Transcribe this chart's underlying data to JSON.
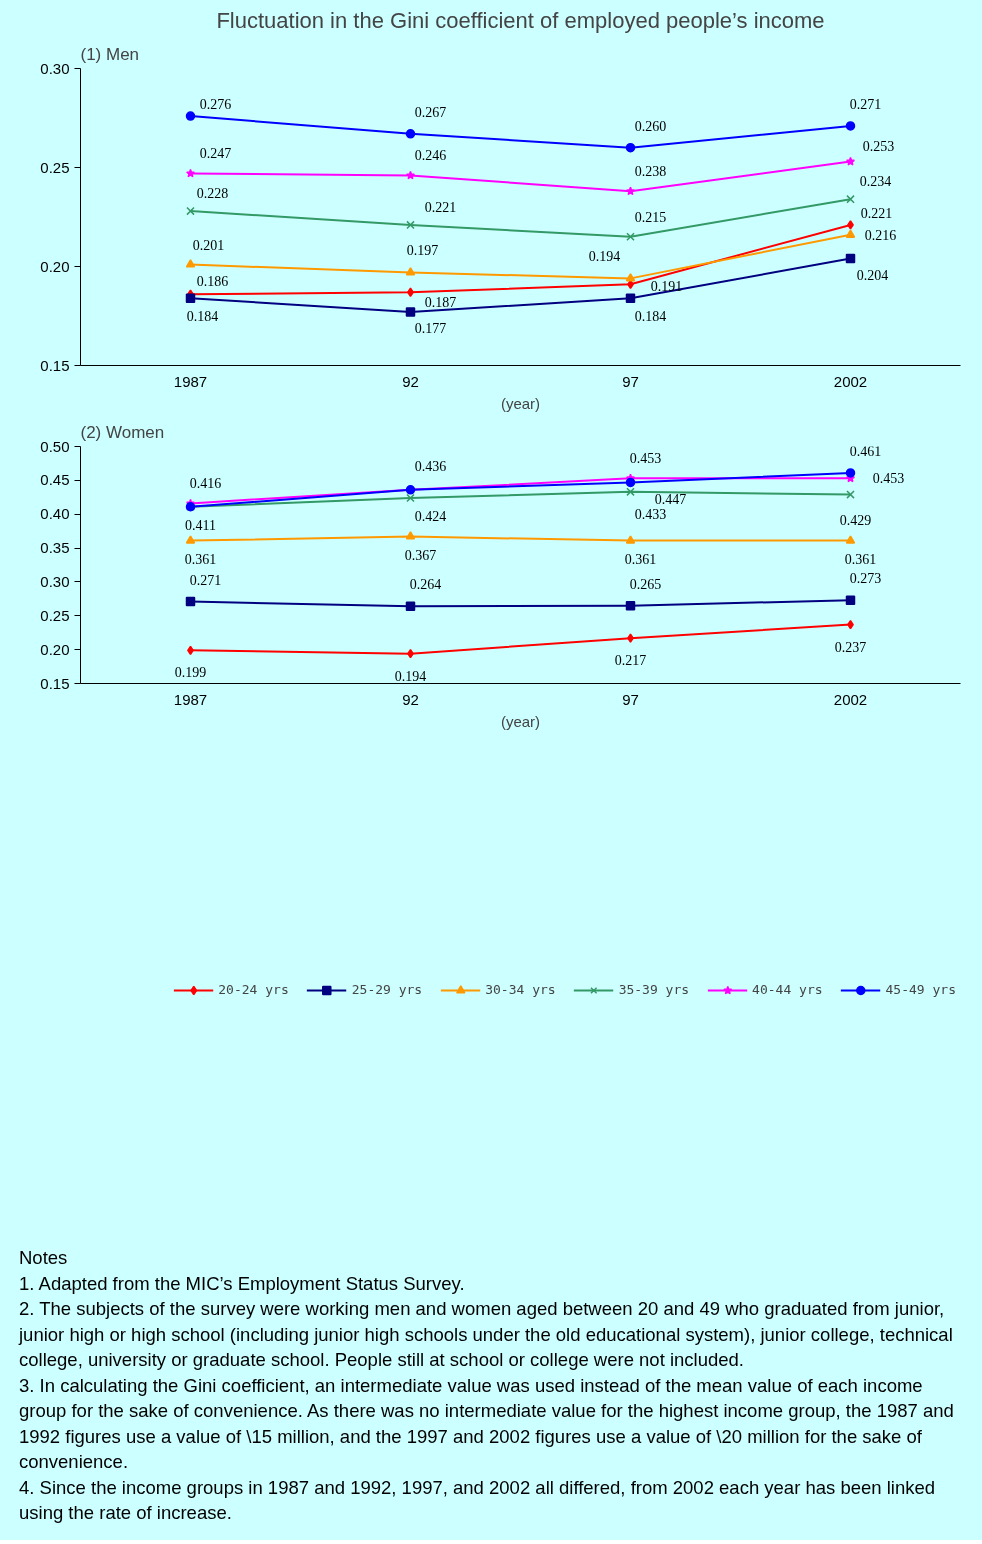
{
  "chart_data": [
    {
      "type": "line",
      "title": "Fluctuation in the Gini coefficient of employed people’s income",
      "subtitle": "(1) Men",
      "xlabel": "(year)",
      "categories": [
        "1987",
        "92",
        "97",
        "2002"
      ],
      "ylim": [
        0.15,
        0.3
      ],
      "yticks": [
        "0.15",
        "0.20",
        "0.25",
        "0.30"
      ],
      "grid": false,
      "legend": false,
      "series": [
        {
          "color": "#ff0000",
          "marker": "diamond",
          "values": [
            0.186,
            0.187,
            0.191,
            0.221
          ],
          "value_labels": [
            "0.186",
            "0.187",
            "0.191",
            "0.221"
          ]
        },
        {
          "color": "#000080",
          "marker": "square",
          "values": [
            0.184,
            0.177,
            0.184,
            0.204
          ],
          "value_labels": [
            "0.184",
            "0.177",
            "0.184",
            "0.204"
          ]
        },
        {
          "color": "#ff9900",
          "marker": "triangle",
          "values": [
            0.201,
            0.197,
            0.194,
            0.216
          ],
          "value_labels": [
            "0.201",
            "0.197",
            "0.194",
            "0.216"
          ]
        },
        {
          "color": "#339966",
          "marker": "cross",
          "values": [
            0.228,
            0.221,
            0.215,
            0.234
          ],
          "value_labels": [
            "0.228",
            "0.221",
            "0.215",
            "0.234"
          ]
        },
        {
          "color": "#ff00ff",
          "marker": "star",
          "values": [
            0.247,
            0.246,
            0.238,
            0.253
          ],
          "value_labels": [
            "0.247",
            "0.246",
            "0.238",
            "0.253"
          ]
        },
        {
          "color": "#0000ff",
          "marker": "circle",
          "values": [
            0.276,
            0.267,
            0.26,
            0.271
          ],
          "value_labels": [
            "0.276",
            "0.267",
            "0.260",
            "0.271"
          ]
        }
      ]
    },
    {
      "type": "line",
      "title": "(2) Women",
      "xlabel": "(year)",
      "categories": [
        "1987",
        "92",
        "97",
        "2002"
      ],
      "ylim": [
        0.15,
        0.5
      ],
      "yticks": [
        "0.15",
        "0.20",
        "0.25",
        "0.30",
        "0.35",
        "0.40",
        "0.45",
        "0.50"
      ],
      "grid": false,
      "legend": "bottom",
      "annotations": [
        "Notes",
        "1. Adapted from the MIC’s Employment Status Survey.",
        "2. The subjects of the survey were working men and women aged between 20 and 49 who graduated from junior, junior high or high school (including junior high schools under the old educational system), junior college, technical college, university or graduate school. People still at school or college were not included.",
        "3. In calculating the Gini coefficient, an intermediate value was used instead of the mean value of each income group for the sake of convenience. As there was no intermediate value for the highest income group, the 1987 and 1992 figures use a value of \\15 million, and the 1997 and 2002 figures use a value of \\20 million for the sake of convenience.",
        "4.  Since the income groups in 1987 and 1992, 1997, and 2002 all differed, from 2002 each year has been linked using the rate of increase."
      ],
      "series": [
        {
          "name": "20-24 yrs",
          "color": "#ff0000",
          "marker": "diamond",
          "values": [
            0.199,
            0.194,
            0.217,
            0.237
          ],
          "value_labels": [
            "0.199",
            "0.194",
            "0.217",
            "0.237"
          ]
        },
        {
          "name": "25-29 yrs",
          "color": "#000080",
          "marker": "square",
          "values": [
            0.271,
            0.264,
            0.265,
            0.273
          ],
          "value_labels": [
            "0.271",
            "0.264",
            "0.265",
            "0.273"
          ]
        },
        {
          "name": "30-34 yrs",
          "color": "#ff9900",
          "marker": "triangle",
          "values": [
            0.361,
            0.367,
            0.361,
            0.361
          ],
          "value_labels": [
            "0.361",
            "0.367",
            "0.361",
            "0.361"
          ]
        },
        {
          "name": "35-39 yrs",
          "color": "#339966",
          "marker": "cross",
          "values": [
            0.411,
            0.424,
            0.433,
            0.429
          ],
          "value_labels": [
            null,
            "0.424",
            "0.433",
            "0.429"
          ]
        },
        {
          "name": "40-44 yrs",
          "color": "#ff00ff",
          "marker": "star",
          "values": [
            0.416,
            0.436,
            0.453,
            0.453
          ],
          "value_labels": [
            "0.416",
            null,
            "0.453",
            "0.453"
          ]
        },
        {
          "name": "45-49 yrs",
          "color": "#0000ff",
          "marker": "circle",
          "values": [
            0.411,
            0.436,
            0.447,
            0.461
          ],
          "value_labels": [
            "0.411",
            "0.436",
            "0.447",
            "0.461"
          ]
        }
      ]
    }
  ]
}
